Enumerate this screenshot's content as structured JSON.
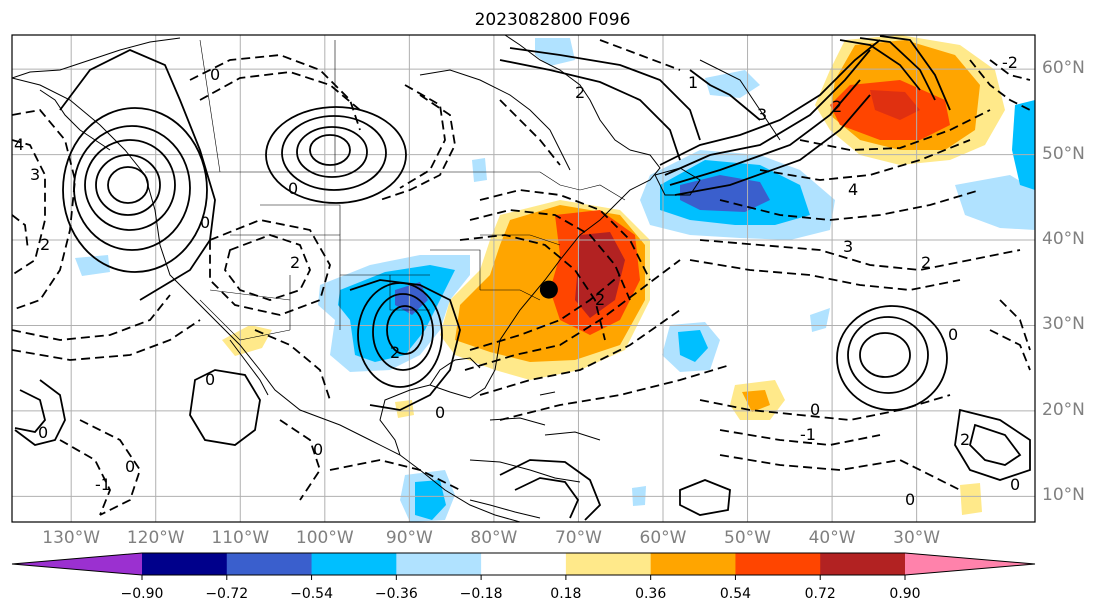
{
  "title": "2023082800 F096",
  "map": {
    "projection": "equirectangular",
    "lon_range": [
      -137,
      -16
    ],
    "lat_range": [
      7,
      64
    ],
    "grid": true,
    "feature_marker": {
      "lon": -73.5,
      "lat": 34.2,
      "color": "#000000"
    },
    "contour_style": {
      "positive": "solid",
      "negative": "dashed",
      "color": "#000000"
    }
  },
  "lon_labels": [
    "130°W",
    "120°W",
    "110°W",
    "100°W",
    "90°W",
    "80°W",
    "70°W",
    "60°W",
    "50°W",
    "40°W",
    "30°W"
  ],
  "lat_labels": [
    "60°N",
    "50°N",
    "40°N",
    "30°N",
    "20°N",
    "10°N"
  ],
  "colorbar": {
    "ticks": [
      "−0.90",
      "−0.72",
      "−0.54",
      "−0.36",
      "−0.18",
      "0.18",
      "0.36",
      "0.54",
      "0.72",
      "0.90"
    ],
    "colors": [
      "#9b30d0",
      "#00008b",
      "#3a5fcd",
      "#00bfff",
      "#b0e2ff",
      "#ffffff",
      "#ffe98a",
      "#ffa500",
      "#ff4500",
      "#b22222",
      "#ff82ab"
    ],
    "extend": "both"
  },
  "contour_labels": [
    "-2",
    "-1",
    "0",
    "1",
    "2",
    "3",
    "4"
  ]
}
